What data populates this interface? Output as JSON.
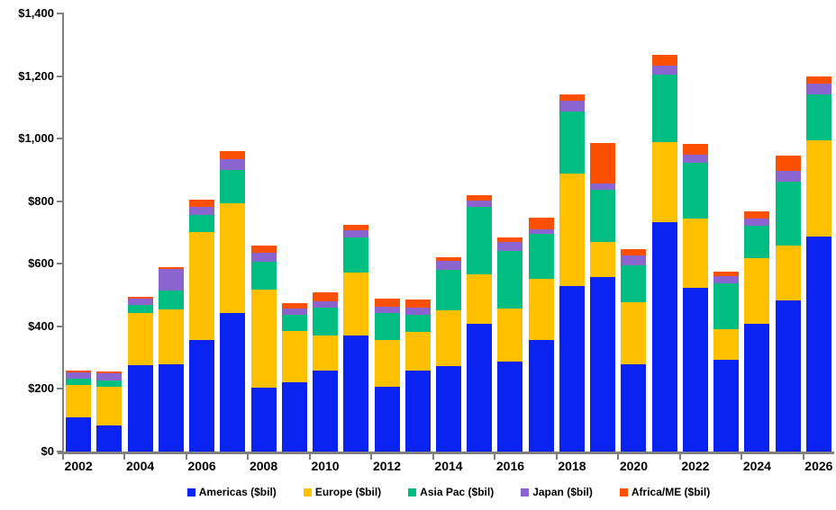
{
  "chart_data": {
    "type": "bar",
    "subtype": "stacked-column",
    "title": "",
    "categories": [
      "2002",
      "2003",
      "2004",
      "2005",
      "2006",
      "2007",
      "2008",
      "2009",
      "2010",
      "2011",
      "2012",
      "2013",
      "2014",
      "2015",
      "2016",
      "2017",
      "2018",
      "2019",
      "2020",
      "2021",
      "2022",
      "2023",
      "2024",
      "2025",
      "2026"
    ],
    "series": [
      {
        "name": "Americas ($bil)",
        "color": "#0a23f0",
        "values": [
          110,
          84,
          277,
          278,
          357,
          443,
          203,
          220,
          260,
          371,
          208,
          260,
          272,
          409,
          288,
          356,
          529,
          559,
          278,
          734,
          522,
          294,
          409,
          483,
          687
        ]
      },
      {
        "name": "Europe ($bil)",
        "color": "#ffc000",
        "values": [
          104,
          123,
          165,
          177,
          345,
          350,
          315,
          165,
          111,
          201,
          149,
          123,
          180,
          156,
          169,
          196,
          360,
          111,
          199,
          254,
          223,
          96,
          209,
          176,
          307
        ]
      },
      {
        "name": "Asia Pac ($bil)",
        "color": "#00bd82",
        "values": [
          18,
          19,
          26,
          61,
          55,
          106,
          88,
          53,
          88,
          111,
          86,
          55,
          129,
          216,
          184,
          144,
          197,
          168,
          119,
          216,
          177,
          149,
          105,
          204,
          147
        ]
      },
      {
        "name": "Japan ($bil)",
        "color": "#8b64d0",
        "values": [
          20,
          25,
          21,
          67,
          26,
          36,
          28,
          18,
          21,
          25,
          20,
          22,
          28,
          22,
          28,
          15,
          35,
          18,
          32,
          28,
          28,
          22,
          23,
          35,
          35
        ]
      },
      {
        "name": "Africa/ME ($bil)",
        "color": "#fd4f00",
        "values": [
          7,
          6,
          6,
          7,
          22,
          26,
          25,
          18,
          30,
          18,
          25,
          26,
          13,
          17,
          16,
          38,
          20,
          129,
          18,
          35,
          32,
          14,
          21,
          48,
          24
        ]
      }
    ],
    "ylim": [
      0,
      1400
    ],
    "y_ticks": [
      "$0",
      "$200",
      "$400",
      "$600",
      "$800",
      "$1,000",
      "$1,200",
      "$1,400"
    ],
    "y_tick_step": 200,
    "x_label_every": 2,
    "grid": false,
    "legend_position": "bottom",
    "axis_color": "#808080",
    "label_color": "#000000"
  }
}
